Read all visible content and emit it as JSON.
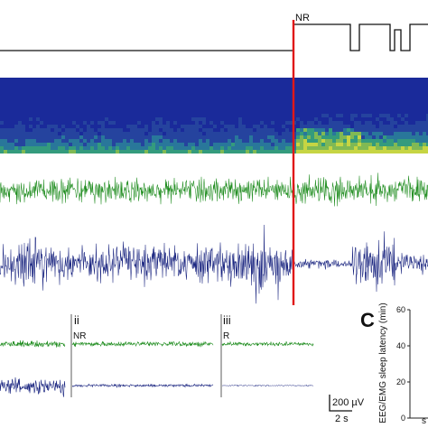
{
  "figure": {
    "hypnogram_label": "NR",
    "panel_c_letter": "C",
    "inset_ii": {
      "roman": "ii",
      "state": "NR"
    },
    "inset_iii": {
      "roman": "iii",
      "state": "R"
    },
    "scale_bar": {
      "amplitude": "200 µV",
      "time": "2 s"
    }
  },
  "chart_data": [
    {
      "type": "line",
      "name": "hypnogram",
      "states": [
        "W",
        "NR",
        "W",
        "NR",
        "W",
        "NR",
        "W"
      ],
      "levels": {
        "W": 0,
        "NR": 1
      },
      "annotation": "NR"
    },
    {
      "type": "heatmap",
      "name": "eeg-spectrogram",
      "colors": {
        "low": "#1a2a9a",
        "mid": "#2f9c86",
        "high": "#d9e83a"
      },
      "onset_marker_color": "#e01818"
    },
    {
      "type": "line",
      "name": "emg-trace",
      "color": "#1e8c1e"
    },
    {
      "type": "line",
      "name": "eeg-trace",
      "color": "#1a2580"
    },
    {
      "type": "bar",
      "name": "panel-c-latency",
      "ylabel": "EEG/EMG sleep latency (min)",
      "yticks": [
        "60",
        "40",
        "20",
        "0"
      ],
      "ylim": [
        0,
        60
      ],
      "xlabel_fragment": "m",
      "first_xtick_fragment": "s"
    }
  ],
  "colors": {
    "onset_marker": "#e01818",
    "emg": "#1e8c1e",
    "eeg": "#1a2580",
    "axis": "#222222"
  }
}
